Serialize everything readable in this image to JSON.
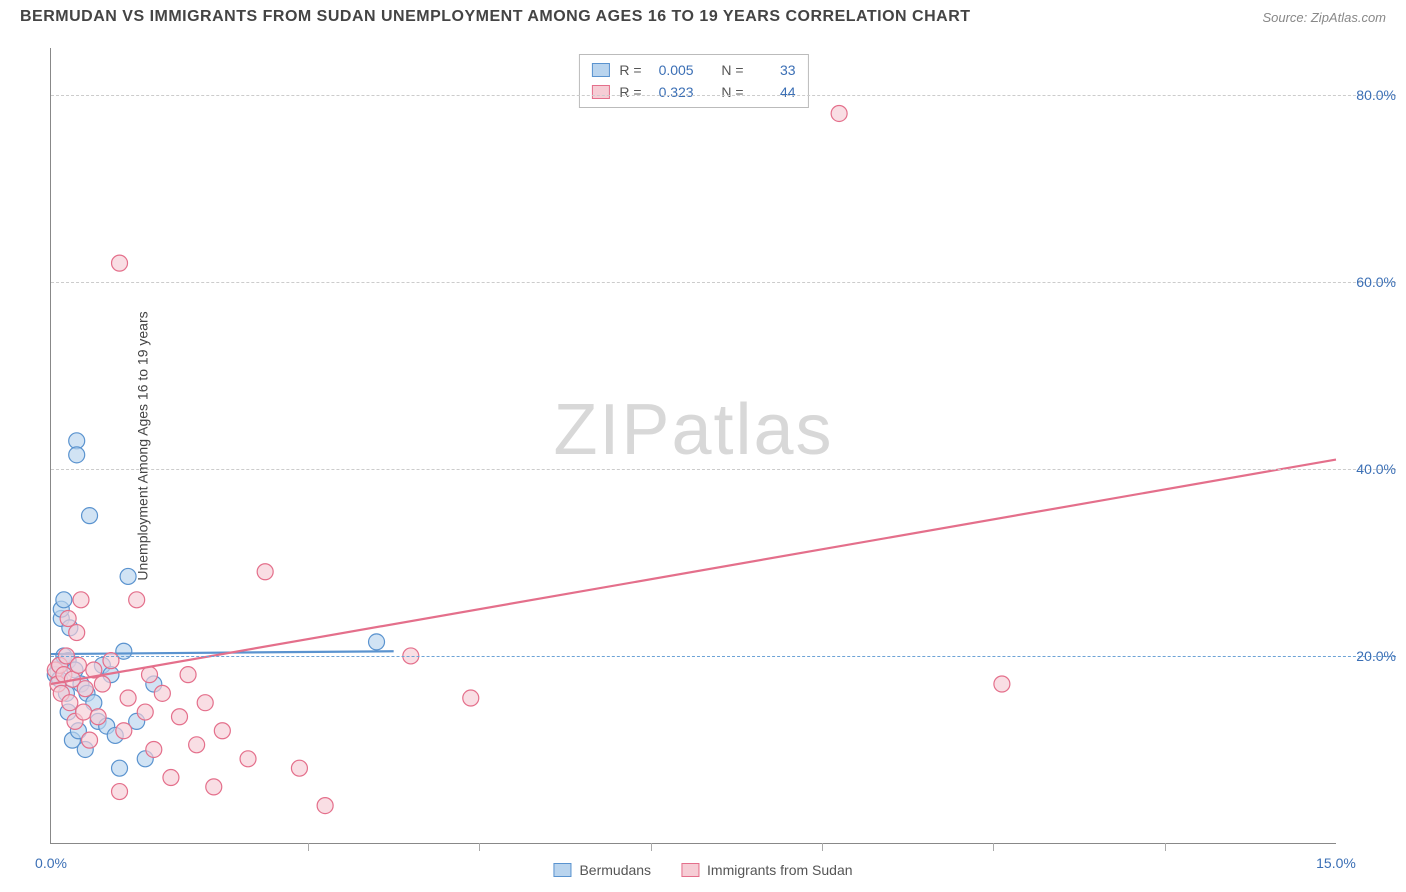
{
  "title": "BERMUDAN VS IMMIGRANTS FROM SUDAN UNEMPLOYMENT AMONG AGES 16 TO 19 YEARS CORRELATION CHART",
  "source": "Source: ZipAtlas.com",
  "watermark_a": "ZIP",
  "watermark_b": "atlas",
  "ylabel": "Unemployment Among Ages 16 to 19 years",
  "chart": {
    "type": "scatter",
    "xlim": [
      0,
      15
    ],
    "ylim": [
      0,
      85
    ],
    "xticks": [
      {
        "v": 0,
        "label": "0.0%"
      },
      {
        "v": 15,
        "label": "15.0%"
      }
    ],
    "xminor": [
      3,
      5,
      7,
      9,
      11,
      13
    ],
    "yticks": [
      {
        "v": 20,
        "label": "20.0%",
        "ref": true
      },
      {
        "v": 40,
        "label": "40.0%"
      },
      {
        "v": 60,
        "label": "60.0%"
      },
      {
        "v": 80,
        "label": "80.0%"
      }
    ],
    "background_color": "#ffffff",
    "grid_color": "#cccccc",
    "ref_line_color": "#6da3d6",
    "axis_color": "#888888",
    "tick_label_color": "#3b6fb5",
    "marker_radius": 8,
    "marker_stroke_width": 1.2,
    "trend_line_width": 2.2,
    "series": [
      {
        "name": "Bermudans",
        "fill": "#b9d4ee",
        "stroke": "#5a93cf",
        "r": 0.005,
        "n": 33,
        "trend": {
          "x0": 0,
          "y0": 20.2,
          "x1": 4.0,
          "y1": 20.5
        },
        "points": [
          [
            0.05,
            18
          ],
          [
            0.1,
            19
          ],
          [
            0.1,
            17.5
          ],
          [
            0.12,
            24
          ],
          [
            0.12,
            25
          ],
          [
            0.15,
            20
          ],
          [
            0.18,
            16
          ],
          [
            0.2,
            19.5
          ],
          [
            0.2,
            14
          ],
          [
            0.22,
            23
          ],
          [
            0.25,
            11
          ],
          [
            0.28,
            18.5
          ],
          [
            0.3,
            43
          ],
          [
            0.3,
            41.5
          ],
          [
            0.32,
            12
          ],
          [
            0.35,
            17
          ],
          [
            0.4,
            10
          ],
          [
            0.42,
            16
          ],
          [
            0.45,
            35
          ],
          [
            0.5,
            15
          ],
          [
            0.55,
            13
          ],
          [
            0.6,
            19
          ],
          [
            0.65,
            12.5
          ],
          [
            0.7,
            18
          ],
          [
            0.75,
            11.5
          ],
          [
            0.8,
            8
          ],
          [
            0.85,
            20.5
          ],
          [
            0.9,
            28.5
          ],
          [
            1.0,
            13
          ],
          [
            1.1,
            9
          ],
          [
            1.2,
            17
          ],
          [
            3.8,
            21.5
          ],
          [
            0.15,
            26
          ]
        ]
      },
      {
        "name": "Immigrants from Sudan",
        "fill": "#f6cdd5",
        "stroke": "#e46f8b",
        "r": 0.323,
        "n": 44,
        "trend": {
          "x0": 0,
          "y0": 17,
          "x1": 15,
          "y1": 41
        },
        "points": [
          [
            0.05,
            18.5
          ],
          [
            0.08,
            17
          ],
          [
            0.1,
            19
          ],
          [
            0.12,
            16
          ],
          [
            0.15,
            18
          ],
          [
            0.18,
            20
          ],
          [
            0.2,
            24
          ],
          [
            0.22,
            15
          ],
          [
            0.25,
            17.5
          ],
          [
            0.28,
            13
          ],
          [
            0.3,
            22.5
          ],
          [
            0.32,
            19
          ],
          [
            0.35,
            26
          ],
          [
            0.38,
            14
          ],
          [
            0.4,
            16.5
          ],
          [
            0.45,
            11
          ],
          [
            0.5,
            18.5
          ],
          [
            0.55,
            13.5
          ],
          [
            0.6,
            17
          ],
          [
            0.7,
            19.5
          ],
          [
            0.8,
            5.5
          ],
          [
            0.8,
            62
          ],
          [
            0.85,
            12
          ],
          [
            0.9,
            15.5
          ],
          [
            1.0,
            26
          ],
          [
            1.1,
            14
          ],
          [
            1.15,
            18
          ],
          [
            1.2,
            10
          ],
          [
            1.3,
            16
          ],
          [
            1.4,
            7
          ],
          [
            1.5,
            13.5
          ],
          [
            1.6,
            18
          ],
          [
            1.7,
            10.5
          ],
          [
            1.8,
            15
          ],
          [
            1.9,
            6
          ],
          [
            2.0,
            12
          ],
          [
            2.3,
            9
          ],
          [
            2.5,
            29
          ],
          [
            2.9,
            8
          ],
          [
            3.2,
            4
          ],
          [
            4.2,
            20
          ],
          [
            4.9,
            15.5
          ],
          [
            9.2,
            78
          ],
          [
            11.1,
            17
          ]
        ]
      }
    ]
  },
  "legend_top": {
    "r_label": "R =",
    "n_label": "N ="
  },
  "legend_bottom": [
    {
      "label": "Bermudans",
      "fill": "#b9d4ee",
      "stroke": "#5a93cf"
    },
    {
      "label": "Immigrants from Sudan",
      "fill": "#f6cdd5",
      "stroke": "#e46f8b"
    }
  ]
}
